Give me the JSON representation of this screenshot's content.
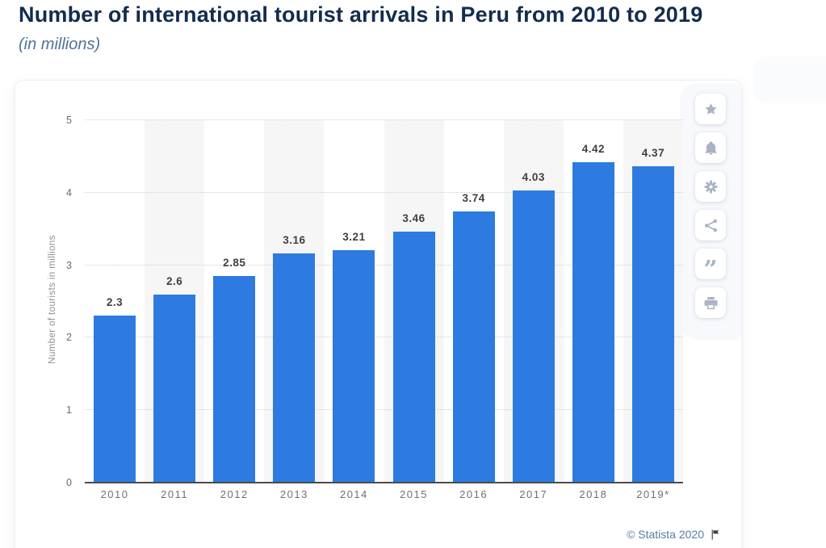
{
  "header": {
    "title": "Number of international tourist arrivals in Peru from 2010 to 2019",
    "subtitle": "(in millions)"
  },
  "chart_data": {
    "type": "bar",
    "title": "Number of international tourist arrivals in Peru from 2010 to 2019",
    "subtitle": "(in millions)",
    "categories": [
      "2010",
      "2011",
      "2012",
      "2013",
      "2014",
      "2015",
      "2016",
      "2017",
      "2018",
      "2019*"
    ],
    "values": [
      2.3,
      2.6,
      2.85,
      3.16,
      3.21,
      3.46,
      3.74,
      4.03,
      4.42,
      4.37
    ],
    "value_labels": [
      "2.3",
      "2.6",
      "2.85",
      "3.16",
      "3.21",
      "3.46",
      "3.74",
      "4.03",
      "4.42",
      "4.37"
    ],
    "xlabel": "",
    "ylabel": "Number of tourists in millions",
    "ylim": [
      0,
      5
    ],
    "yticks": [
      0,
      1,
      2,
      3,
      4,
      5
    ],
    "grid": "horizontal-dotted",
    "legend": "none",
    "bar_color": "#2d7be0",
    "stripe_color": "#f6f6f6"
  },
  "toolbar": {
    "buttons": [
      {
        "id": "favorite",
        "icon": "star-icon"
      },
      {
        "id": "notifications",
        "icon": "bell-icon"
      },
      {
        "id": "settings",
        "icon": "gear-icon"
      },
      {
        "id": "share",
        "icon": "share-icon"
      },
      {
        "id": "cite",
        "icon": "quote-icon"
      },
      {
        "id": "print",
        "icon": "printer-icon"
      }
    ]
  },
  "footer": {
    "copyright": "© Statista 2020",
    "flag": "flag-icon"
  }
}
